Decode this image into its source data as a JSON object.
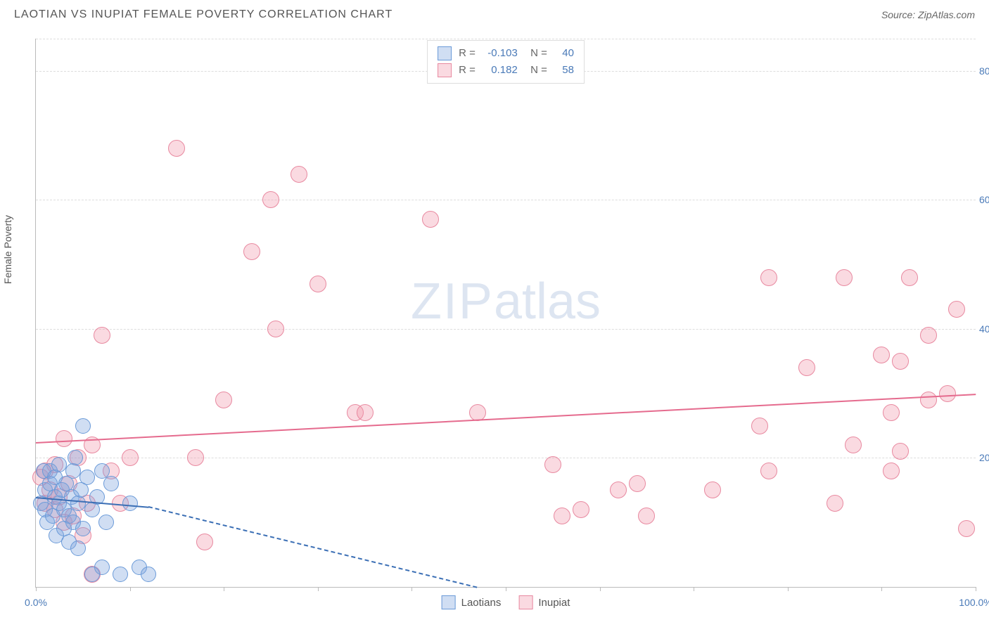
{
  "header": {
    "title": "LAOTIAN VS INUPIAT FEMALE POVERTY CORRELATION CHART",
    "source": "Source: ZipAtlas.com"
  },
  "watermark": {
    "zip": "ZIP",
    "atlas": "atlas"
  },
  "chart": {
    "type": "scatter",
    "y_axis_label": "Female Poverty",
    "xlim": [
      0,
      100
    ],
    "ylim": [
      0,
      85
    ],
    "y_ticks": [
      20,
      40,
      60,
      80
    ],
    "y_tick_labels": [
      "20.0%",
      "40.0%",
      "60.0%",
      "80.0%"
    ],
    "x_ticks": [
      0,
      10,
      20,
      30,
      40,
      50,
      60,
      70,
      80,
      90,
      100
    ],
    "x_tick_labels": {
      "first": "0.0%",
      "last": "100.0%"
    },
    "grid_color": "#dddddd",
    "axis_label_color": "#4a7ab8",
    "series": {
      "laotians": {
        "label": "Laotians",
        "fill": "rgba(120, 160, 220, 0.35)",
        "stroke": "#6a9ad8",
        "trend_color": "#3b6fb5",
        "marker_radius": 10,
        "R": "-0.103",
        "N": "40",
        "trend": {
          "x0": 0,
          "y0": 14,
          "x1": 12,
          "y1": 12.5
        },
        "trend_ext": {
          "x0": 12,
          "y0": 12.5,
          "x1": 47,
          "y1": 0
        },
        "points": [
          {
            "x": 0.5,
            "y": 13
          },
          {
            "x": 0.8,
            "y": 18
          },
          {
            "x": 1,
            "y": 12
          },
          {
            "x": 1,
            "y": 15
          },
          {
            "x": 1.2,
            "y": 10
          },
          {
            "x": 1.5,
            "y": 16
          },
          {
            "x": 1.5,
            "y": 18
          },
          {
            "x": 1.8,
            "y": 11
          },
          {
            "x": 2,
            "y": 14
          },
          {
            "x": 2,
            "y": 17
          },
          {
            "x": 2.2,
            "y": 8
          },
          {
            "x": 2.5,
            "y": 13
          },
          {
            "x": 2.5,
            "y": 19
          },
          {
            "x": 2.8,
            "y": 15
          },
          {
            "x": 3,
            "y": 9
          },
          {
            "x": 3,
            "y": 12
          },
          {
            "x": 3.2,
            "y": 16
          },
          {
            "x": 3.5,
            "y": 11
          },
          {
            "x": 3.5,
            "y": 7
          },
          {
            "x": 3.8,
            "y": 14
          },
          {
            "x": 4,
            "y": 18
          },
          {
            "x": 4,
            "y": 10
          },
          {
            "x": 4.2,
            "y": 20
          },
          {
            "x": 4.5,
            "y": 13
          },
          {
            "x": 4.5,
            "y": 6
          },
          {
            "x": 4.8,
            "y": 15
          },
          {
            "x": 5,
            "y": 25
          },
          {
            "x": 5,
            "y": 9
          },
          {
            "x": 5.5,
            "y": 17
          },
          {
            "x": 6,
            "y": 12
          },
          {
            "x": 6,
            "y": 2
          },
          {
            "x": 6.5,
            "y": 14
          },
          {
            "x": 7,
            "y": 18
          },
          {
            "x": 7,
            "y": 3
          },
          {
            "x": 7.5,
            "y": 10
          },
          {
            "x": 8,
            "y": 16
          },
          {
            "x": 9,
            "y": 2
          },
          {
            "x": 10,
            "y": 13
          },
          {
            "x": 11,
            "y": 3
          },
          {
            "x": 12,
            "y": 2
          }
        ]
      },
      "inupiat": {
        "label": "Inupiat",
        "fill": "rgba(240, 150, 170, 0.35)",
        "stroke": "#e889a0",
        "trend_color": "#e56b8e",
        "marker_radius": 11,
        "R": "0.182",
        "N": "58",
        "trend": {
          "x0": 0,
          "y0": 22.5,
          "x1": 100,
          "y1": 30
        },
        "points": [
          {
            "x": 0.5,
            "y": 17
          },
          {
            "x": 1,
            "y": 13
          },
          {
            "x": 1,
            "y": 18
          },
          {
            "x": 1.5,
            "y": 15
          },
          {
            "x": 2,
            "y": 12
          },
          {
            "x": 2,
            "y": 19
          },
          {
            "x": 2.5,
            "y": 14
          },
          {
            "x": 3,
            "y": 23
          },
          {
            "x": 3,
            "y": 10
          },
          {
            "x": 3.5,
            "y": 16
          },
          {
            "x": 4,
            "y": 11
          },
          {
            "x": 4.5,
            "y": 20
          },
          {
            "x": 5,
            "y": 8
          },
          {
            "x": 5.5,
            "y": 13
          },
          {
            "x": 6,
            "y": 22
          },
          {
            "x": 6,
            "y": 2
          },
          {
            "x": 7,
            "y": 39
          },
          {
            "x": 8,
            "y": 18
          },
          {
            "x": 9,
            "y": 13
          },
          {
            "x": 10,
            "y": 20
          },
          {
            "x": 15,
            "y": 68
          },
          {
            "x": 17,
            "y": 20
          },
          {
            "x": 18,
            "y": 7
          },
          {
            "x": 20,
            "y": 29
          },
          {
            "x": 23,
            "y": 52
          },
          {
            "x": 25,
            "y": 60
          },
          {
            "x": 25.5,
            "y": 40
          },
          {
            "x": 28,
            "y": 64
          },
          {
            "x": 30,
            "y": 47
          },
          {
            "x": 34,
            "y": 27
          },
          {
            "x": 35,
            "y": 27
          },
          {
            "x": 42,
            "y": 57
          },
          {
            "x": 47,
            "y": 27
          },
          {
            "x": 55,
            "y": 19
          },
          {
            "x": 56,
            "y": 11
          },
          {
            "x": 58,
            "y": 12
          },
          {
            "x": 62,
            "y": 15
          },
          {
            "x": 64,
            "y": 16
          },
          {
            "x": 65,
            "y": 11
          },
          {
            "x": 72,
            "y": 15
          },
          {
            "x": 77,
            "y": 25
          },
          {
            "x": 78,
            "y": 48
          },
          {
            "x": 78,
            "y": 18
          },
          {
            "x": 82,
            "y": 34
          },
          {
            "x": 85,
            "y": 13
          },
          {
            "x": 86,
            "y": 48
          },
          {
            "x": 87,
            "y": 22
          },
          {
            "x": 90,
            "y": 36
          },
          {
            "x": 91,
            "y": 27
          },
          {
            "x": 91,
            "y": 18
          },
          {
            "x": 92,
            "y": 21
          },
          {
            "x": 92,
            "y": 35
          },
          {
            "x": 93,
            "y": 48
          },
          {
            "x": 95,
            "y": 39
          },
          {
            "x": 95,
            "y": 29
          },
          {
            "x": 97,
            "y": 30
          },
          {
            "x": 98,
            "y": 43
          },
          {
            "x": 99,
            "y": 9
          }
        ]
      }
    },
    "legend_bottom": [
      "laotians",
      "inupiat"
    ]
  }
}
